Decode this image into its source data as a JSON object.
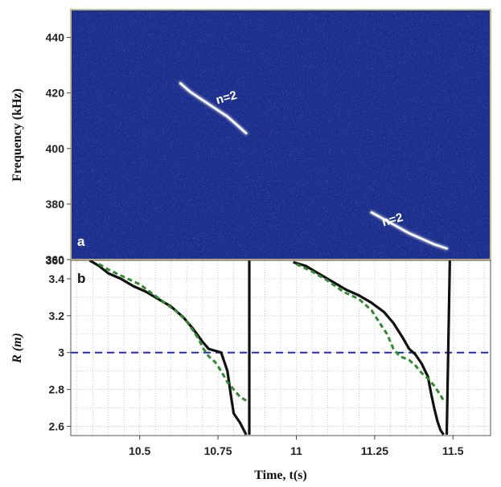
{
  "chart_data": [
    {
      "panel": "a",
      "type": "heatmap",
      "ylabel": "Frequency (kHz)",
      "yticks": [
        360,
        380,
        400,
        420,
        440
      ],
      "ylim": [
        360,
        450
      ],
      "xlim": [
        10.28,
        11.62
      ],
      "background_color": "#1c2f8c",
      "trace_color": "#ffffff",
      "annotations": [
        {
          "text": "n=2",
          "x": 10.78,
          "y": 417
        },
        {
          "text": "n=2",
          "x": 11.31,
          "y": 373
        }
      ],
      "series": [
        {
          "values": [
            [
              10.63,
              423.5
            ],
            [
              10.66,
              420.5
            ],
            [
              10.7,
              417.5
            ],
            [
              10.74,
              414.5
            ],
            [
              10.78,
              411.5
            ],
            [
              10.81,
              408.5
            ],
            [
              10.84,
              405.5
            ]
          ]
        },
        {
          "values": [
            [
              11.24,
              377.0
            ],
            [
              11.28,
              374.5
            ],
            [
              11.32,
              372.0
            ],
            [
              11.36,
              369.5
            ],
            [
              11.4,
              367.5
            ],
            [
              11.44,
              365.5
            ],
            [
              11.48,
              364.0
            ]
          ]
        }
      ]
    },
    {
      "panel": "b",
      "type": "line",
      "ylabel": "R (m)",
      "xlabel": "Time, t(s)",
      "xticks": [
        "10.5",
        "10.75",
        "11",
        "11.25",
        "11.5"
      ],
      "xtick_values": [
        10.5,
        10.75,
        11,
        11.25,
        11.5
      ],
      "yticks": [
        "2.6",
        "2.8",
        "3",
        "3.2",
        "3.4"
      ],
      "ytick_values": [
        2.6,
        2.8,
        3.0,
        3.2,
        3.4
      ],
      "xlim": [
        10.28,
        11.62
      ],
      "ylim": [
        2.55,
        3.5
      ],
      "grid": true,
      "reference_line": {
        "y": 3.0,
        "color": "#1f2fa8",
        "style": "dashed"
      },
      "series": [
        {
          "color": "#111111",
          "style": "solid",
          "values": [
            [
              10.34,
              3.5
            ],
            [
              10.37,
              3.47
            ],
            [
              10.4,
              3.43
            ],
            [
              10.44,
              3.4
            ],
            [
              10.48,
              3.36
            ],
            [
              10.52,
              3.33
            ],
            [
              10.56,
              3.29
            ],
            [
              10.6,
              3.25
            ],
            [
              10.64,
              3.19
            ],
            [
              10.67,
              3.13
            ],
            [
              10.7,
              3.06
            ],
            [
              10.72,
              3.02
            ],
            [
              10.74,
              3.01
            ],
            [
              10.76,
              3.0
            ],
            [
              10.78,
              2.9
            ],
            [
              10.79,
              2.78
            ],
            [
              10.8,
              2.67
            ],
            [
              10.82,
              2.62
            ],
            [
              10.84,
              2.555
            ]
          ]
        },
        {
          "color": "#111111",
          "style": "solid",
          "values": [
            [
              10.85,
              2.555
            ],
            [
              10.85,
              3.5
            ]
          ]
        },
        {
          "color": "#111111",
          "style": "solid",
          "values": [
            [
              10.99,
              3.49
            ],
            [
              11.03,
              3.47
            ],
            [
              11.07,
              3.43
            ],
            [
              11.12,
              3.38
            ],
            [
              11.16,
              3.34
            ],
            [
              11.2,
              3.31
            ],
            [
              11.24,
              3.27
            ],
            [
              11.28,
              3.22
            ],
            [
              11.31,
              3.16
            ],
            [
              11.34,
              3.08
            ],
            [
              11.36,
              3.02
            ],
            [
              11.38,
              2.99
            ],
            [
              11.4,
              2.94
            ],
            [
              11.42,
              2.87
            ],
            [
              11.43,
              2.78
            ],
            [
              11.44,
              2.7
            ],
            [
              11.45,
              2.63
            ],
            [
              11.46,
              2.58
            ],
            [
              11.47,
              2.555
            ]
          ]
        },
        {
          "color": "#111111",
          "style": "solid",
          "values": [
            [
              11.48,
              2.555
            ],
            [
              11.49,
              3.5
            ]
          ]
        },
        {
          "color": "#2e8b2e",
          "style": "dashed",
          "values": [
            [
              10.37,
              3.48
            ],
            [
              10.4,
              3.45
            ],
            [
              10.45,
              3.41
            ],
            [
              10.5,
              3.37
            ],
            [
              10.54,
              3.32
            ],
            [
              10.58,
              3.27
            ],
            [
              10.62,
              3.22
            ],
            [
              10.65,
              3.17
            ],
            [
              10.67,
              3.12
            ],
            [
              10.69,
              3.07
            ],
            [
              10.7,
              3.03
            ],
            [
              10.72,
              2.98
            ],
            [
              10.74,
              2.95
            ],
            [
              10.76,
              2.9
            ],
            [
              10.78,
              2.84
            ],
            [
              10.8,
              2.8
            ],
            [
              10.82,
              2.76
            ],
            [
              10.84,
              2.74
            ]
          ]
        },
        {
          "color": "#2e8b2e",
          "style": "dashed",
          "values": [
            [
              11.0,
              3.48
            ],
            [
              11.05,
              3.44
            ],
            [
              11.1,
              3.39
            ],
            [
              11.15,
              3.33
            ],
            [
              11.2,
              3.29
            ],
            [
              11.24,
              3.23
            ],
            [
              11.27,
              3.15
            ],
            [
              11.29,
              3.1
            ],
            [
              11.31,
              3.02
            ],
            [
              11.33,
              2.98
            ],
            [
              11.36,
              2.96
            ],
            [
              11.38,
              2.93
            ],
            [
              11.4,
              2.89
            ],
            [
              11.42,
              2.86
            ],
            [
              11.44,
              2.82
            ],
            [
              11.46,
              2.77
            ],
            [
              11.47,
              2.74
            ]
          ]
        }
      ]
    }
  ]
}
